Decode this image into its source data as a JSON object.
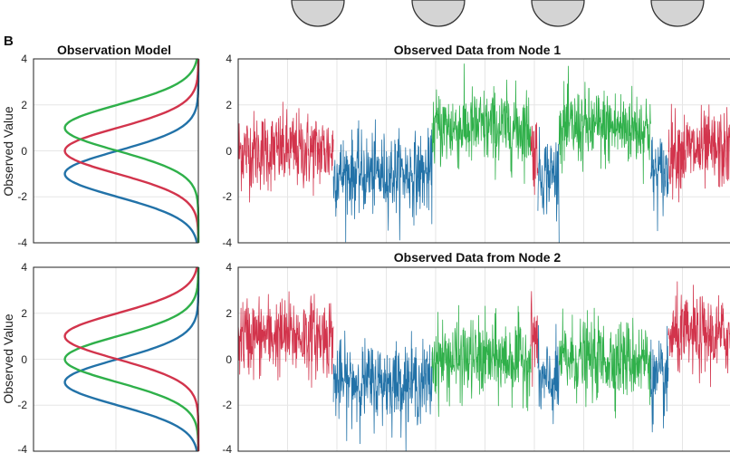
{
  "panel_letter": "B",
  "colors": {
    "red": "#d2344c",
    "blue": "#2272a8",
    "green": "#2fb04a"
  },
  "chart_data": [
    {
      "type": "line",
      "id": "obs-model-1",
      "title": "Observation Model",
      "ylabel": "Observed Value",
      "ylim": [
        -4,
        4
      ],
      "yticks": [
        "4",
        "2",
        "0",
        "-2",
        "-4"
      ],
      "grid": true,
      "series": [
        {
          "color": "blue",
          "mean": -1,
          "sd": 1
        },
        {
          "color": "red",
          "mean": 0,
          "sd": 1
        },
        {
          "color": "green",
          "mean": 1,
          "sd": 1
        }
      ]
    },
    {
      "type": "line",
      "id": "obs-data-1",
      "title": "Observed Data from Node 1",
      "ylim": [
        -4,
        4
      ],
      "yticks": [
        "4",
        "2",
        "0",
        "-2",
        "-4"
      ],
      "grid": true,
      "segments": [
        {
          "start": 0,
          "end": 27,
          "color": "red",
          "mean": 0
        },
        {
          "start": 27,
          "end": 55,
          "color": "blue",
          "mean": -1
        },
        {
          "start": 55,
          "end": 83,
          "color": "green",
          "mean": 1
        },
        {
          "start": 83,
          "end": 85,
          "color": "red",
          "mean": 0
        },
        {
          "start": 85,
          "end": 91,
          "color": "blue",
          "mean": -1
        },
        {
          "start": 91,
          "end": 117,
          "color": "green",
          "mean": 1
        },
        {
          "start": 117,
          "end": 122,
          "color": "blue",
          "mean": -1
        },
        {
          "start": 122,
          "end": 140,
          "color": "red",
          "mean": 0
        }
      ]
    },
    {
      "type": "line",
      "id": "obs-model-2",
      "ylabel": "Observed Value",
      "ylim": [
        -4,
        4
      ],
      "yticks": [
        "4",
        "2",
        "0",
        "-2",
        "-4"
      ],
      "grid": true,
      "series": [
        {
          "color": "blue",
          "mean": -1,
          "sd": 1
        },
        {
          "color": "green",
          "mean": 0,
          "sd": 1
        },
        {
          "color": "red",
          "mean": 1,
          "sd": 1
        }
      ]
    },
    {
      "type": "line",
      "id": "obs-data-2",
      "title": "Observed Data from Node 2",
      "ylim": [
        -4,
        4
      ],
      "yticks": [
        "4",
        "2",
        "0",
        "-2",
        "-4"
      ],
      "grid": true,
      "segments": [
        {
          "start": 0,
          "end": 27,
          "color": "red",
          "mean": 1
        },
        {
          "start": 27,
          "end": 55,
          "color": "blue",
          "mean": -1
        },
        {
          "start": 55,
          "end": 83,
          "color": "green",
          "mean": 0
        },
        {
          "start": 83,
          "end": 85,
          "color": "red",
          "mean": 1
        },
        {
          "start": 85,
          "end": 91,
          "color": "blue",
          "mean": -1
        },
        {
          "start": 91,
          "end": 117,
          "color": "green",
          "mean": 0
        },
        {
          "start": 117,
          "end": 122,
          "color": "blue",
          "mean": -1
        },
        {
          "start": 122,
          "end": 140,
          "color": "red",
          "mean": 1
        }
      ]
    }
  ]
}
